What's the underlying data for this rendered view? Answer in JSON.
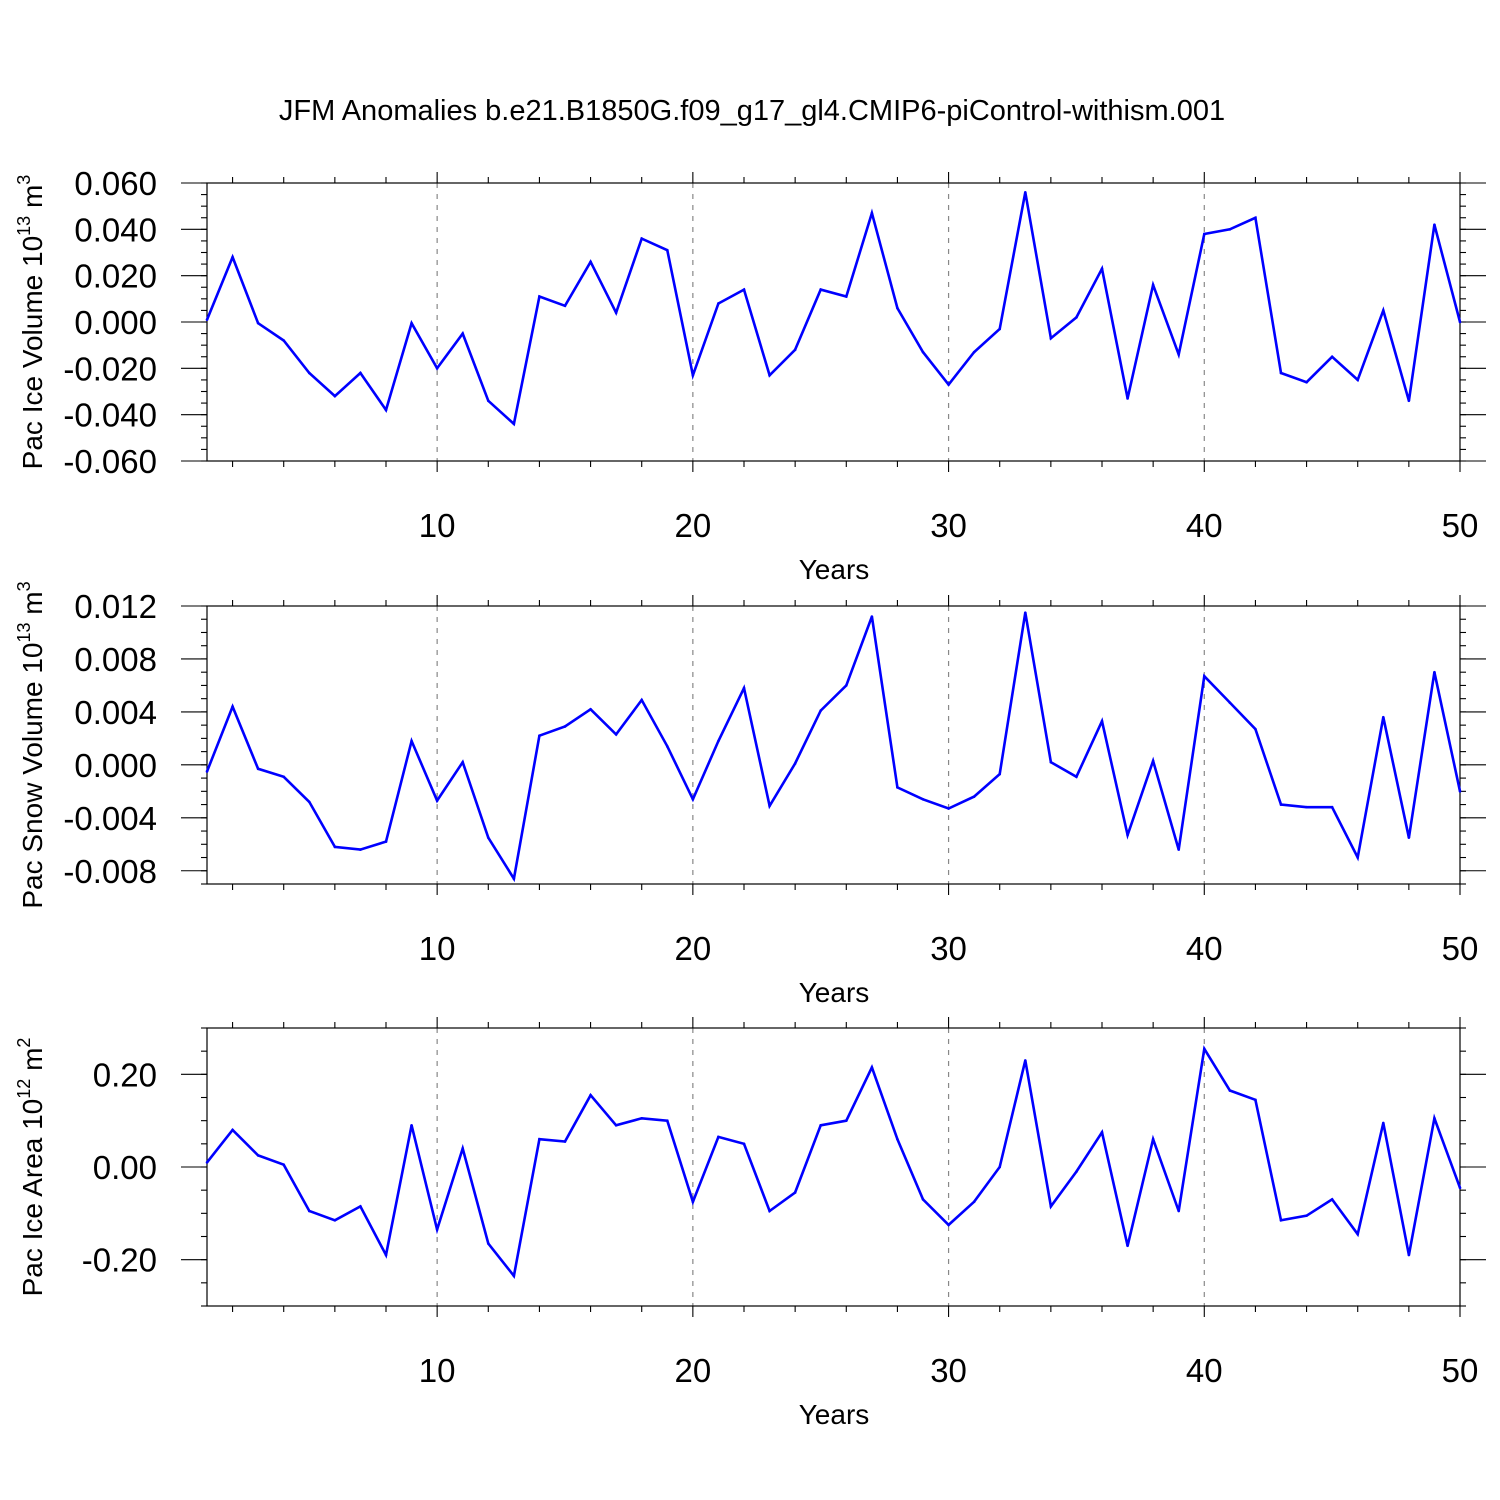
{
  "title": "JFM Anomalies b.e21.B1850G.f09_g17_gl4.CMIP6-piControl-withism.001",
  "colors": {
    "line": "#0000ff",
    "grid": "#888888",
    "frame": "#000000"
  },
  "chart_data": [
    {
      "type": "line",
      "xlabel": "Years",
      "ylabel_main": "Pac Ice Volume 10",
      "ylabel_exp": "13",
      "ylabel_unit": "m",
      "ylabel_unit_exp": "3",
      "xlim": [
        1,
        50
      ],
      "ylim": [
        -0.06,
        0.06
      ],
      "x_ticks": [
        10,
        20,
        30,
        40,
        50
      ],
      "x_tick_labels": [
        "10",
        "20",
        "30",
        "40",
        "50"
      ],
      "x_minor_step": 2,
      "y_ticks": [
        -0.06,
        -0.04,
        -0.02,
        0.0,
        0.02,
        0.04,
        0.06
      ],
      "y_tick_labels": [
        "-0.060",
        "-0.040",
        "-0.020",
        "0.000",
        "0.020",
        "0.040",
        "0.060"
      ],
      "y_minor_step": 0.005,
      "grid_x": [
        10,
        20,
        30,
        40
      ],
      "x": [
        1,
        2,
        3,
        4,
        5,
        6,
        7,
        8,
        9,
        10,
        11,
        12,
        13,
        14,
        15,
        16,
        17,
        18,
        19,
        20,
        21,
        22,
        23,
        24,
        25,
        26,
        27,
        28,
        29,
        30,
        31,
        32,
        33,
        34,
        35,
        36,
        37,
        38,
        39,
        40,
        41,
        42,
        43,
        44,
        45,
        46,
        47,
        48,
        49,
        50
      ],
      "values": [
        0.001,
        0.028,
        -0.0005,
        -0.008,
        -0.022,
        -0.032,
        -0.022,
        -0.038,
        -0.0005,
        -0.02,
        -0.005,
        -0.034,
        -0.044,
        0.011,
        0.007,
        0.026,
        0.004,
        0.036,
        0.031,
        -0.023,
        0.008,
        0.014,
        -0.023,
        -0.012,
        0.014,
        0.011,
        0.047,
        0.006,
        -0.013,
        -0.027,
        -0.013,
        -0.003,
        0.056,
        -0.007,
        0.002,
        0.023,
        -0.033,
        0.016,
        -0.014,
        0.038,
        0.04,
        0.045,
        -0.022,
        -0.026,
        -0.015,
        -0.025,
        0.005,
        -0.034,
        0.042,
        0.0
      ]
    },
    {
      "type": "line",
      "xlabel": "Years",
      "ylabel_main": "Pac Snow Volume 10",
      "ylabel_exp": "13",
      "ylabel_unit": "m",
      "ylabel_unit_exp": "3",
      "xlim": [
        1,
        50
      ],
      "ylim": [
        -0.009,
        0.012
      ],
      "x_ticks": [
        10,
        20,
        30,
        40,
        50
      ],
      "x_tick_labels": [
        "10",
        "20",
        "30",
        "40",
        "50"
      ],
      "x_minor_step": 2,
      "y_ticks": [
        -0.008,
        -0.004,
        0.0,
        0.004,
        0.008,
        0.012
      ],
      "y_tick_labels": [
        "-0.008",
        "-0.004",
        "0.000",
        "0.004",
        "0.008",
        "0.012"
      ],
      "y_minor_step": 0.001,
      "grid_x": [
        10,
        20,
        30,
        40
      ],
      "x": [
        1,
        2,
        3,
        4,
        5,
        6,
        7,
        8,
        9,
        10,
        11,
        12,
        13,
        14,
        15,
        16,
        17,
        18,
        19,
        20,
        21,
        22,
        23,
        24,
        25,
        26,
        27,
        28,
        29,
        30,
        31,
        32,
        33,
        34,
        35,
        36,
        37,
        38,
        39,
        40,
        41,
        42,
        43,
        44,
        45,
        46,
        47,
        48,
        49,
        50
      ],
      "values": [
        -0.0005,
        0.0044,
        -0.0003,
        -0.0009,
        -0.0028,
        -0.0062,
        -0.0064,
        -0.0058,
        0.0018,
        -0.0027,
        0.0002,
        -0.0055,
        -0.0086,
        0.0022,
        0.0029,
        0.0042,
        0.0023,
        0.0049,
        0.0014,
        -0.0026,
        0.0018,
        0.0058,
        -0.0031,
        0.0001,
        0.0041,
        0.006,
        0.0112,
        -0.0017,
        -0.0026,
        -0.0033,
        -0.0024,
        -0.0007,
        0.0115,
        0.0002,
        -0.0009,
        0.0033,
        -0.0053,
        0.0003,
        -0.0064,
        0.0067,
        0.0047,
        0.0027,
        -0.003,
        -0.0032,
        -0.0032,
        -0.007,
        0.0036,
        -0.0055,
        0.007,
        -0.002
      ]
    },
    {
      "type": "line",
      "xlabel": "Years",
      "ylabel_main": "Pac Ice Area 10",
      "ylabel_exp": "12",
      "ylabel_unit": "m",
      "ylabel_unit_exp": "2",
      "xlim": [
        1,
        50
      ],
      "ylim": [
        -0.3,
        0.3
      ],
      "x_ticks": [
        10,
        20,
        30,
        40,
        50
      ],
      "x_tick_labels": [
        "10",
        "20",
        "30",
        "40",
        "50"
      ],
      "x_minor_step": 2,
      "y_ticks": [
        -0.2,
        0.0,
        0.2
      ],
      "y_tick_labels": [
        "-0.20",
        "0.00",
        "0.20"
      ],
      "y_minor_step": 0.05,
      "grid_x": [
        10,
        20,
        30,
        40
      ],
      "x": [
        1,
        2,
        3,
        4,
        5,
        6,
        7,
        8,
        9,
        10,
        11,
        12,
        13,
        14,
        15,
        16,
        17,
        18,
        19,
        20,
        21,
        22,
        23,
        24,
        25,
        26,
        27,
        28,
        29,
        30,
        31,
        32,
        33,
        34,
        35,
        36,
        37,
        38,
        39,
        40,
        41,
        42,
        43,
        44,
        45,
        46,
        47,
        48,
        49,
        50
      ],
      "values": [
        0.01,
        0.08,
        0.025,
        0.005,
        -0.095,
        -0.115,
        -0.085,
        -0.19,
        0.09,
        -0.135,
        0.04,
        -0.165,
        -0.235,
        0.06,
        0.055,
        0.155,
        0.09,
        0.105,
        0.1,
        -0.075,
        0.065,
        0.05,
        -0.095,
        -0.055,
        0.09,
        0.1,
        0.215,
        0.06,
        -0.07,
        -0.125,
        -0.075,
        0.0,
        0.23,
        -0.085,
        -0.01,
        0.075,
        -0.17,
        0.06,
        -0.095,
        0.255,
        0.165,
        0.145,
        -0.115,
        -0.105,
        -0.07,
        -0.145,
        0.095,
        -0.19,
        0.105,
        -0.045
      ]
    }
  ]
}
